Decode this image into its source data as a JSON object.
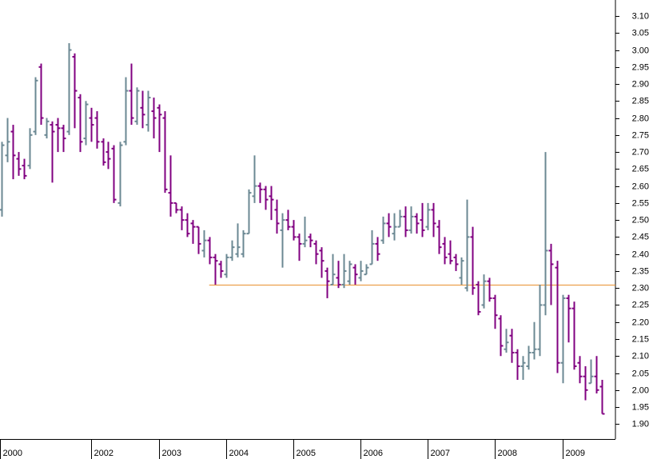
{
  "chart_data": {
    "type": "ohlc",
    "x": [
      2000.667,
      2000.75,
      2000.833,
      2000.917,
      2001.0,
      2001.083,
      2001.167,
      2001.25,
      2001.333,
      2001.417,
      2001.5,
      2001.583,
      2001.667,
      2001.75,
      2001.833,
      2001.917,
      2002.0,
      2002.083,
      2002.167,
      2002.25,
      2002.333,
      2002.417,
      2002.5,
      2002.583,
      2002.667,
      2002.75,
      2002.833,
      2002.917,
      2003.0,
      2003.083,
      2003.167,
      2003.25,
      2003.333,
      2003.417,
      2003.5,
      2003.583,
      2003.667,
      2003.75,
      2003.833,
      2003.917,
      2004.0,
      2004.083,
      2004.167,
      2004.25,
      2004.333,
      2004.417,
      2004.5,
      2004.583,
      2004.667,
      2004.75,
      2004.833,
      2004.917,
      2005.0,
      2005.083,
      2005.167,
      2005.25,
      2005.333,
      2005.417,
      2005.5,
      2005.583,
      2005.667,
      2005.75,
      2005.833,
      2005.917,
      2006.0,
      2006.083,
      2006.167,
      2006.25,
      2006.333,
      2006.417,
      2006.5,
      2006.583,
      2006.667,
      2006.75,
      2006.833,
      2006.917,
      2007.0,
      2007.083,
      2007.167,
      2007.25,
      2007.333,
      2007.417,
      2007.5,
      2007.583,
      2007.667,
      2007.75,
      2007.833,
      2007.917,
      2008.0,
      2008.083,
      2008.167,
      2008.25,
      2008.333,
      2008.417,
      2008.5,
      2008.583,
      2008.667,
      2008.75,
      2008.833,
      2008.917,
      2009.0,
      2009.083,
      2009.167,
      2009.25,
      2009.333,
      2009.417,
      2009.5,
      2009.583
    ],
    "open": [
      2.53,
      2.69,
      2.76,
      2.68,
      2.66,
      2.66,
      2.76,
      2.95,
      2.75,
      2.78,
      2.78,
      2.77,
      2.76,
      2.98,
      2.86,
      2.74,
      2.8,
      2.8,
      2.73,
      2.7,
      2.71,
      2.55,
      2.73,
      2.88,
      2.79,
      2.83,
      2.78,
      2.82,
      2.83,
      2.8,
      2.58,
      2.55,
      2.53,
      2.5,
      2.49,
      2.48,
      2.41,
      2.44,
      2.39,
      2.37,
      2.34,
      2.39,
      2.4,
      2.4,
      2.46,
      2.57,
      2.6,
      2.59,
      2.57,
      2.53,
      2.47,
      2.5,
      2.48,
      2.45,
      2.43,
      2.45,
      2.43,
      2.41,
      2.35,
      2.31,
      2.33,
      2.31,
      2.32,
      2.36,
      2.33,
      2.34,
      2.37,
      2.43,
      2.44,
      2.49,
      2.46,
      2.48,
      2.51,
      2.47,
      2.51,
      2.5,
      2.48,
      2.53,
      2.48,
      2.43,
      2.4,
      2.39,
      2.33,
      2.3,
      2.45,
      2.31,
      2.25,
      2.32,
      2.27,
      2.21,
      2.12,
      2.16,
      2.11,
      2.07,
      2.07,
      2.11,
      2.12,
      2.25,
      2.41,
      2.36,
      2.08,
      2.27,
      2.24,
      2.08,
      2.04,
      2.02,
      2.04,
      2.01
    ],
    "high": [
      2.73,
      2.8,
      2.78,
      2.7,
      2.68,
      2.77,
      2.92,
      2.96,
      2.8,
      2.79,
      2.8,
      2.78,
      3.02,
      2.99,
      2.87,
      2.85,
      2.83,
      2.82,
      2.74,
      2.73,
      2.72,
      2.73,
      2.92,
      2.96,
      2.89,
      2.88,
      2.88,
      2.86,
      2.84,
      2.82,
      2.69,
      2.55,
      2.54,
      2.52,
      2.5,
      2.48,
      2.47,
      2.45,
      2.4,
      2.38,
      2.4,
      2.44,
      2.49,
      2.47,
      2.59,
      2.69,
      2.61,
      2.6,
      2.6,
      2.56,
      2.52,
      2.53,
      2.5,
      2.46,
      2.51,
      2.46,
      2.44,
      2.42,
      2.36,
      2.4,
      2.38,
      2.4,
      2.38,
      2.37,
      2.38,
      2.37,
      2.47,
      2.45,
      2.51,
      2.52,
      2.52,
      2.53,
      2.54,
      2.54,
      2.52,
      2.55,
      2.55,
      2.55,
      2.5,
      2.45,
      2.44,
      2.4,
      2.39,
      2.56,
      2.48,
      2.32,
      2.34,
      2.33,
      2.28,
      2.22,
      2.18,
      2.18,
      2.12,
      2.1,
      2.13,
      2.2,
      2.31,
      2.7,
      2.43,
      2.38,
      2.28,
      2.28,
      2.26,
      2.1,
      2.07,
      2.09,
      2.1,
      2.03
    ],
    "low": [
      2.51,
      2.67,
      2.62,
      2.63,
      2.62,
      2.65,
      2.75,
      2.78,
      2.74,
      2.61,
      2.7,
      2.7,
      2.75,
      2.77,
      2.7,
      2.72,
      2.73,
      2.71,
      2.66,
      2.65,
      2.55,
      2.54,
      2.72,
      2.78,
      2.78,
      2.77,
      2.76,
      2.74,
      2.7,
      2.58,
      2.51,
      2.52,
      2.47,
      2.45,
      2.43,
      2.4,
      2.39,
      2.37,
      2.31,
      2.33,
      2.33,
      2.38,
      2.39,
      2.39,
      2.46,
      2.55,
      2.55,
      2.53,
      2.5,
      2.46,
      2.36,
      2.47,
      2.44,
      2.38,
      2.42,
      2.42,
      2.37,
      2.33,
      2.27,
      2.31,
      2.3,
      2.3,
      2.31,
      2.31,
      2.32,
      2.34,
      2.37,
      2.38,
      2.43,
      2.45,
      2.44,
      2.48,
      2.45,
      2.46,
      2.46,
      2.45,
      2.47,
      2.45,
      2.4,
      2.37,
      2.37,
      2.35,
      2.31,
      2.29,
      2.28,
      2.22,
      2.24,
      2.26,
      2.18,
      2.1,
      2.11,
      2.08,
      2.03,
      2.03,
      2.06,
      2.09,
      2.1,
      2.22,
      2.25,
      2.05,
      2.02,
      2.14,
      2.06,
      2.02,
      1.97,
      2.02,
      1.99,
      1.93
    ],
    "close": [
      2.72,
      2.73,
      2.69,
      2.65,
      2.63,
      2.75,
      2.91,
      2.8,
      2.79,
      2.76,
      2.77,
      2.74,
      3.0,
      2.88,
      2.73,
      2.84,
      2.78,
      2.73,
      2.67,
      2.68,
      2.56,
      2.72,
      2.88,
      2.8,
      2.88,
      2.81,
      2.86,
      2.8,
      2.81,
      2.59,
      2.55,
      2.53,
      2.5,
      2.46,
      2.48,
      2.43,
      2.44,
      2.39,
      2.38,
      2.35,
      2.39,
      2.42,
      2.42,
      2.46,
      2.58,
      2.6,
      2.59,
      2.56,
      2.56,
      2.49,
      2.5,
      2.48,
      2.45,
      2.43,
      2.44,
      2.44,
      2.4,
      2.38,
      2.32,
      2.34,
      2.31,
      2.35,
      2.37,
      2.34,
      2.35,
      2.36,
      2.43,
      2.4,
      2.49,
      2.48,
      2.48,
      2.51,
      2.47,
      2.51,
      2.49,
      2.47,
      2.53,
      2.49,
      2.42,
      2.39,
      2.38,
      2.37,
      2.38,
      2.45,
      2.3,
      2.23,
      2.32,
      2.27,
      2.22,
      2.13,
      2.14,
      2.11,
      2.07,
      2.08,
      2.11,
      2.12,
      2.25,
      2.41,
      2.37,
      2.08,
      2.27,
      2.24,
      2.07,
      2.04,
      2.0,
      2.04,
      2.0,
      1.93
    ],
    "up_color": "#6b8893",
    "down_color": "#800080",
    "hline": {
      "value": 2.31,
      "x_start": 2003.75,
      "color": "#e8902e"
    },
    "xlim": [
      2000.64,
      2009.79
    ],
    "xticks": [
      {
        "value": 2000.64,
        "label": "2000"
      },
      2002,
      2003,
      2004,
      2005,
      2006,
      2007,
      2008,
      2009
    ],
    "ylim": [
      1.856,
      3.147
    ],
    "yticks": [
      {
        "value": 1.9,
        "label": "1.90"
      },
      1.95,
      {
        "value": 2.0,
        "label": "2.00"
      },
      2.05,
      {
        "value": 2.1,
        "label": "2.10"
      },
      2.15,
      {
        "value": 2.2,
        "label": "2.20"
      },
      2.25,
      {
        "value": 2.3,
        "label": "2.30"
      },
      2.35,
      {
        "value": 2.4,
        "label": "2.40"
      },
      2.45,
      {
        "value": 2.5,
        "label": "2.50"
      },
      2.55,
      {
        "value": 2.6,
        "label": "2.60"
      },
      2.65,
      {
        "value": 2.7,
        "label": "2.70"
      },
      2.75,
      {
        "value": 2.8,
        "label": "2.80"
      },
      2.85,
      {
        "value": 2.9,
        "label": "2.90"
      },
      2.95,
      {
        "value": 3.0,
        "label": "3.00"
      },
      3.05,
      {
        "value": 3.1,
        "label": "3.10"
      }
    ]
  }
}
